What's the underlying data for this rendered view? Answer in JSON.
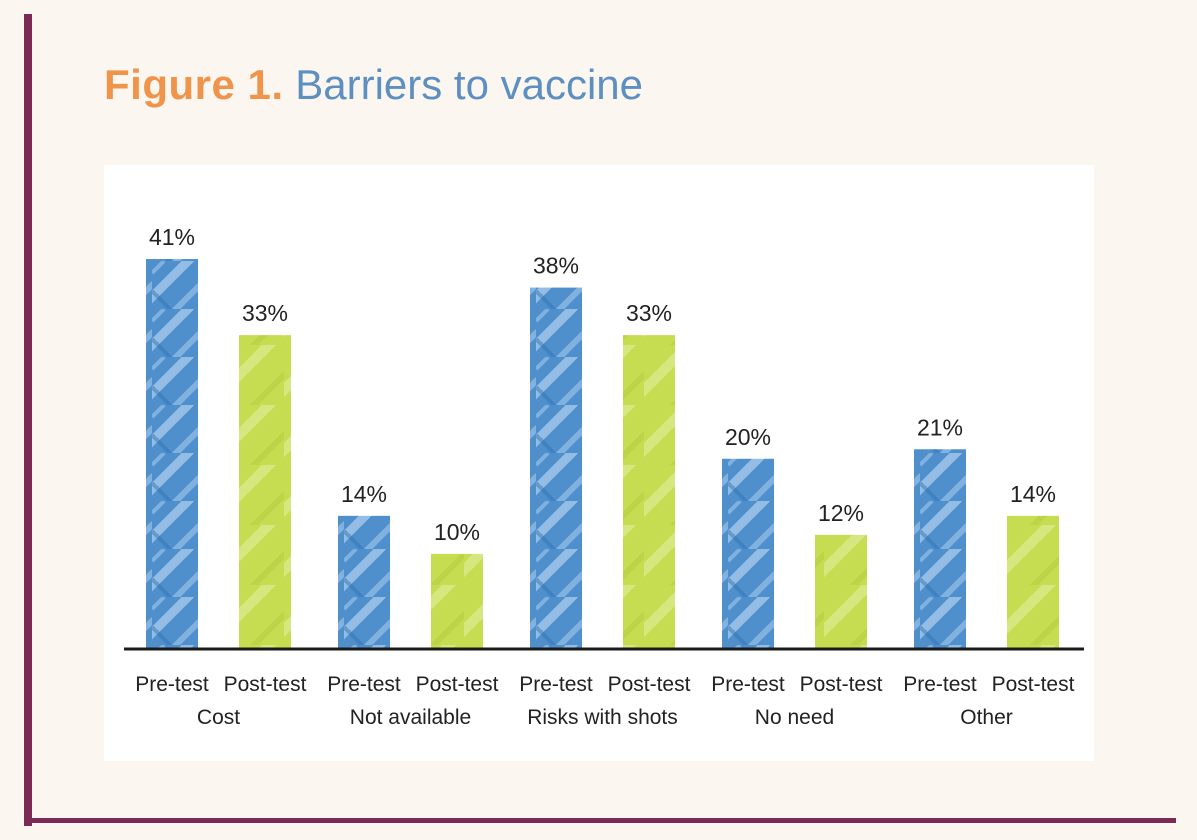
{
  "figure": {
    "label": "Figure 1.",
    "title": "Barriers to vaccine"
  },
  "colors": {
    "pre_test": "#4f8fcc",
    "post_test": "#c6dd52",
    "accent_rule": "#7a2a55",
    "title_label": "#f0944b",
    "title_text": "#5d8fc0"
  },
  "chart_data": {
    "type": "bar",
    "title": "Barriers to vaccine",
    "xlabel": "",
    "ylabel": "",
    "ylim": [
      0,
      45
    ],
    "grid": false,
    "value_format": "percent",
    "categories": [
      "Cost",
      "Not available",
      "Risks with shots",
      "No need",
      "Other"
    ],
    "series": [
      {
        "name": "Pre-test",
        "values": [
          41,
          14,
          38,
          20,
          21
        ]
      },
      {
        "name": "Post-test",
        "values": [
          33,
          10,
          33,
          12,
          14
        ]
      }
    ],
    "data_labels": [
      [
        "41%",
        "14%",
        "38%",
        "20%",
        "21%"
      ],
      [
        "33%",
        "10%",
        "33%",
        "12%",
        "14%"
      ]
    ]
  }
}
